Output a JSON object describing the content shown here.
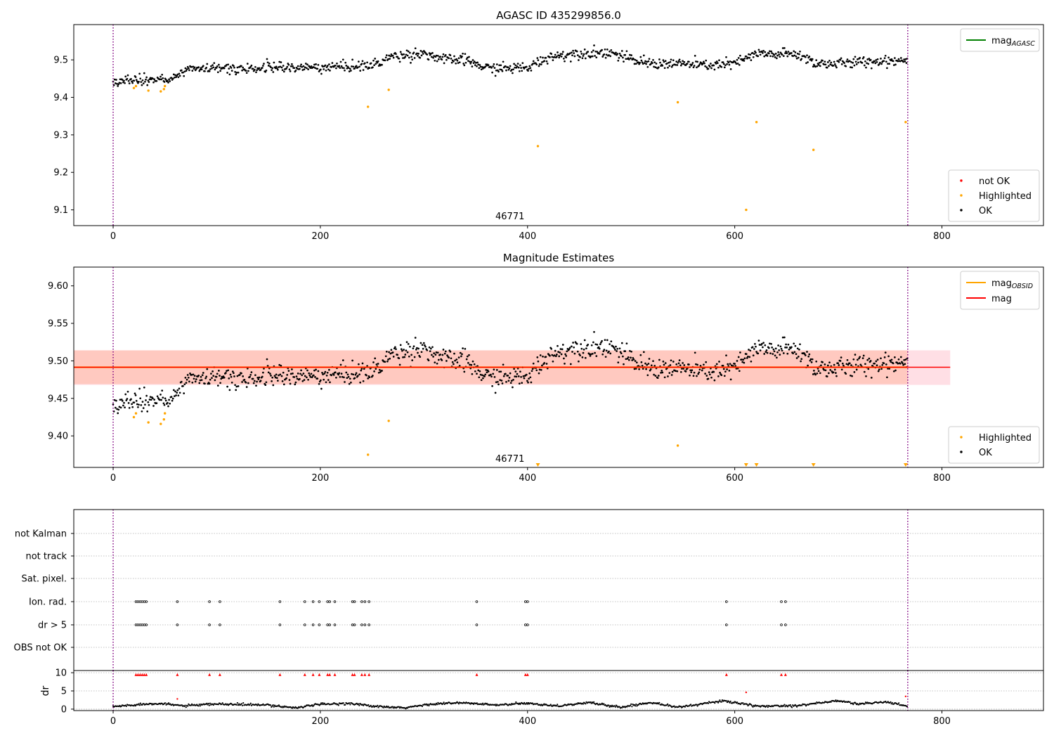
{
  "chart_data": [
    {
      "type": "scatter",
      "title": "AGASC ID 435299856.0",
      "xlabel": "",
      "ylabel": "",
      "xlim": [
        -38,
        898
      ],
      "ylim": [
        9.058,
        9.594
      ],
      "xticks": [
        0,
        200,
        400,
        600,
        800
      ],
      "yticks": [
        9.1,
        9.2,
        9.3,
        9.4,
        9.5
      ],
      "ytick_labels": [
        "9.1",
        "9.2",
        "9.3",
        "9.4",
        "9.5"
      ],
      "grid": false,
      "vlines": [
        0,
        767
      ],
      "obsid_label": {
        "text": "46771",
        "x": 383
      },
      "legend_lines": {
        "placement": "top-right",
        "entries": [
          {
            "label": "mag",
            "sub": "AGASC",
            "color": "#008000"
          }
        ]
      },
      "legend_points": {
        "placement": "bottom-right",
        "entries": [
          {
            "label": "not OK",
            "color": "#ff0000"
          },
          {
            "label": "Highlighted",
            "color": "#ffa500"
          },
          {
            "label": "OK",
            "color": "#000000"
          }
        ]
      },
      "series": [
        {
          "name": "OK",
          "color": "#000000",
          "trend": [
            [
              0,
              9.445
            ],
            [
              30,
              9.445
            ],
            [
              60,
              9.45
            ],
            [
              75,
              9.478
            ],
            [
              100,
              9.477
            ],
            [
              150,
              9.478
            ],
            [
              200,
              9.48
            ],
            [
              250,
              9.485
            ],
            [
              270,
              9.51
            ],
            [
              300,
              9.518
            ],
            [
              320,
              9.5
            ],
            [
              340,
              9.5
            ],
            [
              360,
              9.478
            ],
            [
              400,
              9.478
            ],
            [
              420,
              9.508
            ],
            [
              450,
              9.518
            ],
            [
              480,
              9.52
            ],
            [
              500,
              9.5
            ],
            [
              520,
              9.49
            ],
            [
              550,
              9.49
            ],
            [
              570,
              9.485
            ],
            [
              600,
              9.49
            ],
            [
              620,
              9.515
            ],
            [
              660,
              9.515
            ],
            [
              680,
              9.49
            ],
            [
              700,
              9.49
            ],
            [
              740,
              9.497
            ],
            [
              767,
              9.5
            ]
          ],
          "noise": 0.012,
          "spacing": 0.75
        },
        {
          "name": "Highlighted",
          "color": "#ffa500",
          "x": [
            20,
            22,
            34,
            46,
            49,
            50,
            246,
            266,
            410,
            545,
            611,
            621,
            676,
            765
          ],
          "y": [
            9.425,
            9.43,
            9.418,
            9.416,
            9.422,
            9.43,
            9.375,
            9.42,
            9.27,
            9.387,
            9.1,
            9.334,
            9.26,
            9.334
          ]
        }
      ]
    },
    {
      "type": "scatter",
      "title": "Magnitude Estimates",
      "xlabel": "",
      "ylabel": "",
      "xlim": [
        -38,
        898
      ],
      "ylim": [
        9.358,
        9.625
      ],
      "xticks": [
        0,
        200,
        400,
        600,
        800
      ],
      "yticks": [
        9.4,
        9.45,
        9.5,
        9.55,
        9.6
      ],
      "ytick_labels": [
        "9.40",
        "9.45",
        "9.50",
        "9.55",
        "9.60"
      ],
      "grid": false,
      "vlines": [
        0,
        767
      ],
      "obsid_label": {
        "text": "46771",
        "x": 383
      },
      "bands": [
        {
          "x": [
            -38,
            808
          ],
          "y": [
            9.468,
            9.514
          ],
          "color": "#ffc0cb",
          "opacity": 0.5
        },
        {
          "x": [
            -38,
            767
          ],
          "y": [
            9.469,
            9.514
          ],
          "color": "#ffa07a",
          "opacity": 0.35
        }
      ],
      "hlines": [
        {
          "name": "mag_OBSID",
          "y": 9.4915,
          "x": [
            -38,
            767
          ],
          "color": "#ffa500",
          "width": 2.2
        },
        {
          "name": "mag",
          "y": 9.4915,
          "x": [
            -38,
            808
          ],
          "color": "#ff0000",
          "width": 1.6
        }
      ],
      "legend_lines": {
        "placement": "top-right",
        "entries": [
          {
            "label": "mag",
            "sub": "OBSID",
            "color": "#ffa500"
          },
          {
            "label": "mag",
            "sub": "",
            "color": "#ff0000"
          }
        ]
      },
      "legend_points": {
        "placement": "bottom-right",
        "entries": [
          {
            "label": "Highlighted",
            "color": "#ffa500"
          },
          {
            "label": "OK",
            "color": "#000000"
          }
        ]
      },
      "series": [
        {
          "name": "OK",
          "color": "#000000",
          "trend": [
            [
              0,
              9.445
            ],
            [
              30,
              9.445
            ],
            [
              60,
              9.45
            ],
            [
              75,
              9.478
            ],
            [
              100,
              9.477
            ],
            [
              150,
              9.478
            ],
            [
              200,
              9.48
            ],
            [
              250,
              9.485
            ],
            [
              270,
              9.51
            ],
            [
              300,
              9.518
            ],
            [
              320,
              9.5
            ],
            [
              340,
              9.5
            ],
            [
              360,
              9.478
            ],
            [
              400,
              9.478
            ],
            [
              420,
              9.508
            ],
            [
              450,
              9.518
            ],
            [
              480,
              9.52
            ],
            [
              500,
              9.5
            ],
            [
              520,
              9.49
            ],
            [
              550,
              9.49
            ],
            [
              570,
              9.485
            ],
            [
              600,
              9.49
            ],
            [
              620,
              9.515
            ],
            [
              660,
              9.515
            ],
            [
              680,
              9.49
            ],
            [
              700,
              9.49
            ],
            [
              740,
              9.497
            ],
            [
              767,
              9.5
            ]
          ],
          "noise": 0.012,
          "spacing": 0.75
        },
        {
          "name": "Highlighted",
          "color": "#ffa500",
          "x": [
            20,
            22,
            34,
            46,
            49,
            50,
            246,
            266,
            545
          ],
          "y": [
            9.425,
            9.43,
            9.418,
            9.416,
            9.422,
            9.43,
            9.375,
            9.42,
            9.387
          ]
        },
        {
          "name": "Highlighted (below range)",
          "color": "#ffa500",
          "marker": "triangle-down",
          "x": [
            410,
            611,
            621,
            676,
            765
          ],
          "y": [
            9.36,
            9.36,
            9.36,
            9.36,
            9.36
          ]
        }
      ]
    },
    {
      "type": "scatter",
      "title": "",
      "xlim": [
        -38,
        898
      ],
      "vlines": [
        0,
        767
      ],
      "flag_rows": [
        "not Kalman",
        "not track",
        "Sat. pixel.",
        "Ion. rad.",
        "dr > 5",
        "OBS not OK"
      ],
      "flag_points": {
        "Ion. rad.": [
          22,
          24,
          26,
          28,
          30,
          32,
          62,
          93,
          103,
          161,
          185,
          193,
          199,
          207,
          209,
          214,
          231,
          233,
          240,
          243,
          247,
          351,
          398,
          400,
          592,
          645,
          649
        ],
        "dr > 5": [
          22,
          24,
          26,
          28,
          30,
          32,
          62,
          93,
          103,
          161,
          185,
          193,
          199,
          207,
          209,
          214,
          231,
          233,
          240,
          243,
          247,
          351,
          398,
          400,
          592,
          645,
          649
        ]
      },
      "dr_panel": {
        "ylabel": "dr",
        "ylim": [
          -0.4,
          10.6
        ],
        "yticks": [
          0,
          5,
          10
        ],
        "ytick_labels": [
          "0",
          "5",
          "10"
        ],
        "clip_markers": {
          "color": "#ff0000",
          "y": 9.5,
          "x": [
            22,
            24,
            26,
            28,
            30,
            32,
            62,
            93,
            103,
            161,
            185,
            193,
            199,
            207,
            209,
            214,
            231,
            233,
            240,
            243,
            247,
            351,
            398,
            400,
            592,
            645,
            649
          ]
        },
        "outliers": {
          "color": "#ff0000",
          "x": [
            62,
            611,
            765
          ],
          "y": [
            2.8,
            4.6,
            3.5
          ]
        },
        "trend": [
          [
            0,
            0.7
          ],
          [
            40,
            1.6
          ],
          [
            70,
            0.9
          ],
          [
            100,
            1.4
          ],
          [
            150,
            1.1
          ],
          [
            175,
            0.4
          ],
          [
            200,
            1.3
          ],
          [
            230,
            1.6
          ],
          [
            250,
            0.8
          ],
          [
            280,
            0.3
          ],
          [
            310,
            1.5
          ],
          [
            340,
            1.7
          ],
          [
            370,
            1.1
          ],
          [
            400,
            1.6
          ],
          [
            430,
            0.9
          ],
          [
            460,
            1.8
          ],
          [
            490,
            0.5
          ],
          [
            520,
            1.9
          ],
          [
            545,
            0.5
          ],
          [
            570,
            1.5
          ],
          [
            590,
            2.3
          ],
          [
            620,
            0.8
          ],
          [
            660,
            1.0
          ],
          [
            700,
            2.3
          ],
          [
            720,
            1.4
          ],
          [
            745,
            2.0
          ],
          [
            767,
            0.8
          ]
        ],
        "noise": 0.15
      }
    }
  ]
}
